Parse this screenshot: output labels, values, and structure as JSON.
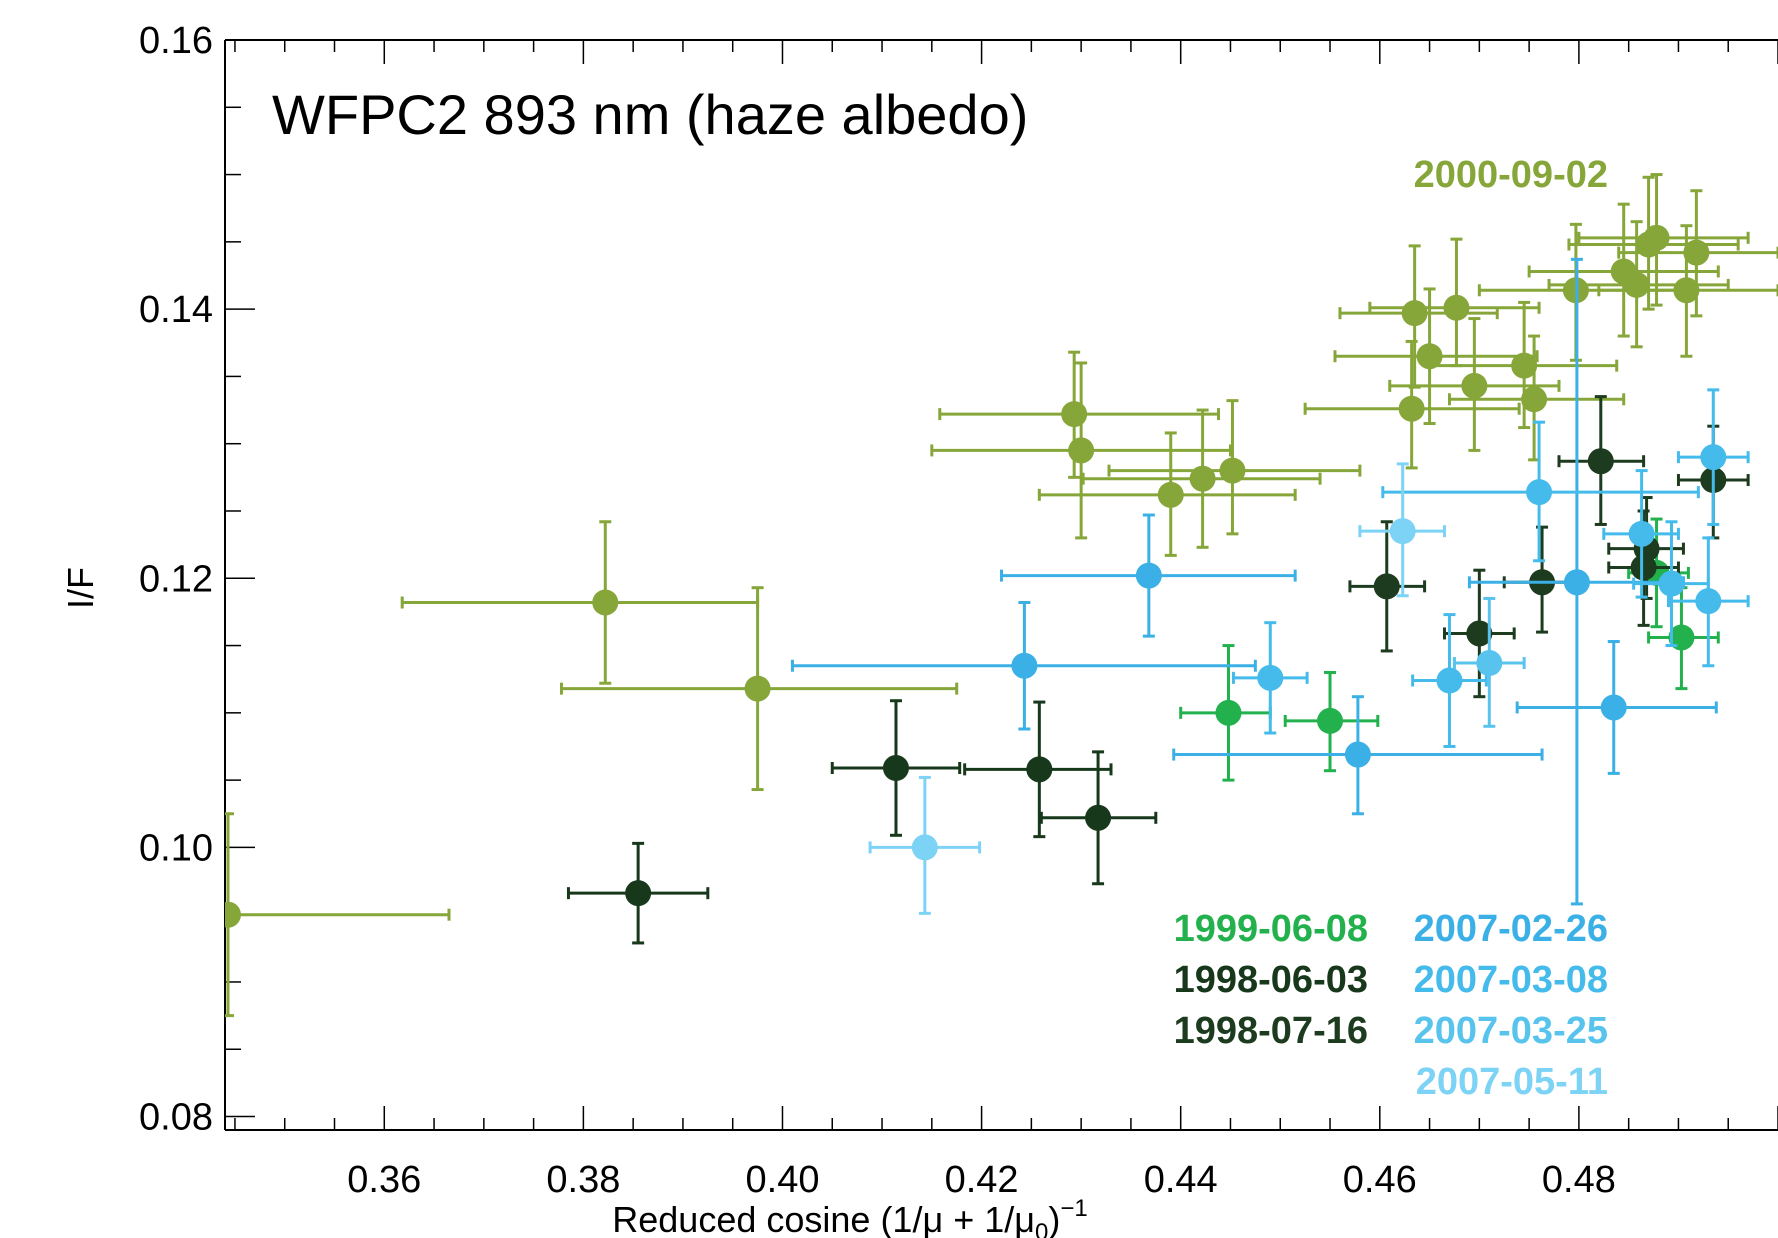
{
  "chart_data": {
    "type": "scatter",
    "title": "WFPC2 893 nm (haze albedo)",
    "xlabel": "Reduced cosine (1/μ + 1/μ",
    "xlabel_sub": "0",
    "xlabel_close": ")",
    "xlabel_sup": "−1",
    "ylabel": "I/F",
    "xlim": [
      0.344,
      0.5
    ],
    "ylim": [
      0.079,
      0.16
    ],
    "x_ticks": [
      "0.36",
      "0.38",
      "0.40",
      "0.42",
      "0.44",
      "0.46",
      "0.48"
    ],
    "y_ticks": [
      "0.08",
      "0.10",
      "0.12",
      "0.14",
      "0.16"
    ],
    "grid": false,
    "series": [
      {
        "name": "2000-09-02",
        "color": "#87a63a",
        "points": [
          {
            "x": 0.3443,
            "y": 0.095,
            "xerr": [
              0.3443,
              0.3665
            ],
            "yerr": [
              0.0875,
              0.1025
            ]
          },
          {
            "x": 0.3822,
            "y": 0.1182,
            "xerr": [
              0.3618,
              0.3975
            ],
            "yerr": [
              0.1122,
              0.1242
            ]
          },
          {
            "x": 0.3975,
            "y": 0.1118,
            "xerr": [
              0.3778,
              0.4175
            ],
            "yerr": [
              0.1043,
              0.1193
            ]
          },
          {
            "x": 0.4293,
            "y": 0.1322,
            "xerr": [
              0.4158,
              0.4438
            ],
            "yerr": [
              0.1275,
              0.1368
            ]
          },
          {
            "x": 0.43,
            "y": 0.1295,
            "xerr": [
              0.415,
              0.445
            ],
            "yerr": [
              0.123,
              0.136
            ]
          },
          {
            "x": 0.439,
            "y": 0.1262,
            "xerr": [
              0.4258,
              0.4515
            ],
            "yerr": [
              0.1217,
              0.1308
            ]
          },
          {
            "x": 0.4422,
            "y": 0.1274,
            "xerr": [
              0.4302,
              0.454
            ],
            "yerr": [
              0.1223,
              0.1325
            ]
          },
          {
            "x": 0.4452,
            "y": 0.128,
            "xerr": [
              0.4328,
              0.458
            ],
            "yerr": [
              0.1233,
              0.1332
            ]
          },
          {
            "x": 0.4635,
            "y": 0.1397,
            "xerr": [
              0.456,
              0.4718
            ],
            "yerr": [
              0.1342,
              0.1447
            ]
          },
          {
            "x": 0.465,
            "y": 0.1365,
            "xerr": [
              0.4555,
              0.4758
            ],
            "yerr": [
              0.1315,
              0.1415
            ]
          },
          {
            "x": 0.4677,
            "y": 0.1401,
            "xerr": [
              0.459,
              0.476
            ],
            "yerr": [
              0.1358,
              0.1452
            ]
          },
          {
            "x": 0.4632,
            "y": 0.1326,
            "xerr": [
              0.4525,
              0.474
            ],
            "yerr": [
              0.1282,
              0.1376
            ]
          },
          {
            "x": 0.4695,
            "y": 0.1343,
            "xerr": [
              0.461,
              0.478
            ],
            "yerr": [
              0.1295,
              0.1393
            ]
          },
          {
            "x": 0.4745,
            "y": 0.1358,
            "xerr": [
              0.465,
              0.4838
            ],
            "yerr": [
              0.1312,
              0.1405
            ]
          },
          {
            "x": 0.4755,
            "y": 0.1333,
            "xerr": [
              0.467,
              0.4845
            ],
            "yerr": [
              0.1288,
              0.138
            ]
          },
          {
            "x": 0.4797,
            "y": 0.1414,
            "xerr": [
              0.47,
              0.49
            ],
            "yerr": [
              0.1362,
              0.1463
            ]
          },
          {
            "x": 0.4845,
            "y": 0.1428,
            "xerr": [
              0.475,
              0.494
            ],
            "yerr": [
              0.138,
              0.1478
            ]
          },
          {
            "x": 0.4858,
            "y": 0.1418,
            "xerr": [
              0.477,
              0.495
            ],
            "yerr": [
              0.1372,
              0.1465
            ]
          },
          {
            "x": 0.487,
            "y": 0.1448,
            "xerr": [
              0.479,
              0.496
            ],
            "yerr": [
              0.14,
              0.1498
            ]
          },
          {
            "x": 0.4878,
            "y": 0.1453,
            "xerr": [
              0.48,
              0.497
            ],
            "yerr": [
              0.1403,
              0.15
            ]
          },
          {
            "x": 0.4908,
            "y": 0.1414,
            "xerr": [
              0.482,
              0.5
            ],
            "yerr": [
              0.1365,
              0.1462
            ]
          },
          {
            "x": 0.4918,
            "y": 0.1442,
            "xerr": [
              0.484,
              0.5
            ],
            "yerr": [
              0.1395,
              0.1488
            ]
          }
        ]
      },
      {
        "name": "1999-06-08",
        "color": "#22b14c",
        "points": [
          {
            "x": 0.4448,
            "y": 0.11,
            "xerr": [
              0.44,
              0.449
            ],
            "yerr": [
              0.105,
              0.115
            ]
          },
          {
            "x": 0.455,
            "y": 0.1094,
            "xerr": [
              0.4505,
              0.4598
            ],
            "yerr": [
              0.1057,
              0.113
            ]
          },
          {
            "x": 0.4878,
            "y": 0.1204,
            "xerr": [
              0.485,
              0.491
            ],
            "yerr": [
              0.1164,
              0.1244
            ]
          },
          {
            "x": 0.4903,
            "y": 0.1156,
            "xerr": [
              0.487,
              0.494
            ],
            "yerr": [
              0.1118,
              0.1193
            ]
          }
        ]
      },
      {
        "name": "1998-06-03",
        "color": "#17381b",
        "points": [
          {
            "x": 0.3855,
            "y": 0.0966,
            "xerr": [
              0.3785,
              0.3925
            ],
            "yerr": [
              0.0929,
              0.1003
            ]
          },
          {
            "x": 0.4114,
            "y": 0.1059,
            "xerr": [
              0.405,
              0.4178
            ],
            "yerr": [
              0.1009,
              0.1109
            ]
          },
          {
            "x": 0.4258,
            "y": 0.1058,
            "xerr": [
              0.4183,
              0.433
            ],
            "yerr": [
              0.1008,
              0.1108
            ]
          },
          {
            "x": 0.4317,
            "y": 0.1022,
            "xerr": [
              0.426,
              0.4375
            ],
            "yerr": [
              0.0973,
              0.1071
            ]
          }
        ]
      },
      {
        "name": "1998-07-16",
        "color": "#1d3b1e",
        "points": [
          {
            "x": 0.4607,
            "y": 0.1194,
            "xerr": [
              0.457,
              0.4645
            ],
            "yerr": [
              0.1146,
              0.1242
            ]
          },
          {
            "x": 0.47,
            "y": 0.1159,
            "xerr": [
              0.4665,
              0.4735
            ],
            "yerr": [
              0.1112,
              0.1206
            ]
          },
          {
            "x": 0.4763,
            "y": 0.1197,
            "xerr": [
              0.4725,
              0.48
            ],
            "yerr": [
              0.116,
              0.1238
            ]
          },
          {
            "x": 0.4822,
            "y": 0.1287,
            "xerr": [
              0.478,
              0.4865
            ],
            "yerr": [
              0.124,
              0.1335
            ]
          },
          {
            "x": 0.4868,
            "y": 0.1222,
            "xerr": [
              0.483,
              0.4905
            ],
            "yerr": [
              0.1185,
              0.126
            ]
          },
          {
            "x": 0.4865,
            "y": 0.1208,
            "xerr": [
              0.483,
              0.49
            ],
            "yerr": [
              0.1165,
              0.125
            ]
          },
          {
            "x": 0.4935,
            "y": 0.1273,
            "xerr": [
              0.49,
              0.497
            ],
            "yerr": [
              0.123,
              0.1313
            ]
          }
        ]
      },
      {
        "name": "2007-02-26",
        "color": "#3bb0e6",
        "points": [
          {
            "x": 0.4368,
            "y": 0.1202,
            "xerr": [
              0.422,
              0.4515
            ],
            "yerr": [
              0.1157,
              0.1247
            ]
          },
          {
            "x": 0.4243,
            "y": 0.1135,
            "xerr": [
              0.401,
              0.4475
            ],
            "yerr": [
              0.1088,
              0.1182
            ]
          },
          {
            "x": 0.4578,
            "y": 0.1069,
            "xerr": [
              0.4393,
              0.4763
            ],
            "yerr": [
              0.1025,
              0.1112
            ]
          },
          {
            "x": 0.4835,
            "y": 0.1104,
            "xerr": [
              0.4738,
              0.4938
            ],
            "yerr": [
              0.1055,
              0.1153
            ]
          },
          {
            "x": 0.4798,
            "y": 0.1197,
            "xerr": [
              0.469,
              0.4905
            ],
            "yerr": [
              0.0958,
              0.1437
            ]
          }
        ]
      },
      {
        "name": "2007-03-08",
        "color": "#45bbec",
        "points": [
          {
            "x": 0.449,
            "y": 0.1126,
            "xerr": [
              0.4453,
              0.4527
            ],
            "yerr": [
              0.1085,
              0.1167
            ]
          },
          {
            "x": 0.467,
            "y": 0.1124,
            "xerr": [
              0.4633,
              0.4707
            ],
            "yerr": [
              0.1075,
              0.1173
            ]
          },
          {
            "x": 0.476,
            "y": 0.1264,
            "xerr": [
              0.4603,
              0.492
            ],
            "yerr": [
              0.1213,
              0.1316
            ]
          },
          {
            "x": 0.4863,
            "y": 0.1233,
            "xerr": [
              0.4825,
              0.49
            ],
            "yerr": [
              0.1186,
              0.128
            ]
          },
          {
            "x": 0.4893,
            "y": 0.1196,
            "xerr": [
              0.4855,
              0.493
            ],
            "yerr": [
              0.115,
              0.1242
            ]
          },
          {
            "x": 0.493,
            "y": 0.1183,
            "xerr": [
              0.489,
              0.497
            ],
            "yerr": [
              0.1135,
              0.123
            ]
          },
          {
            "x": 0.4935,
            "y": 0.129,
            "xerr": [
              0.49,
              0.497
            ],
            "yerr": [
              0.124,
              0.134
            ]
          }
        ]
      },
      {
        "name": "2007-03-25",
        "color": "#58c4ee",
        "points": [
          {
            "x": 0.471,
            "y": 0.1137,
            "xerr": [
              0.4675,
              0.4745
            ],
            "yerr": [
              0.109,
              0.1185
            ]
          }
        ]
      },
      {
        "name": "2007-05-11",
        "color": "#7dd3f5",
        "points": [
          {
            "x": 0.4143,
            "y": 0.1,
            "xerr": [
              0.4088,
              0.4198
            ],
            "yerr": [
              0.0951,
              0.1052
            ]
          },
          {
            "x": 0.4623,
            "y": 0.1235,
            "xerr": [
              0.458,
              0.4665
            ],
            "yerr": [
              0.1187,
              0.1285
            ]
          }
        ]
      }
    ],
    "legend": {
      "placement": "lower-center",
      "columns": [
        [
          {
            "label": "1999-06-08",
            "color": "#22b14c"
          },
          {
            "label": "1998-06-03",
            "color": "#17381b"
          },
          {
            "label": "1998-07-16",
            "color": "#1d3b1e"
          }
        ],
        [
          {
            "label": "2007-02-26",
            "color": "#3bb0e6"
          },
          {
            "label": "2007-03-08",
            "color": "#45bbec"
          },
          {
            "label": "2007-03-25",
            "color": "#58c4ee"
          },
          {
            "label": "2007-05-11",
            "color": "#7dd3f5"
          }
        ]
      ],
      "top_label": {
        "label": "2000-09-02",
        "color": "#87a63a"
      }
    }
  }
}
